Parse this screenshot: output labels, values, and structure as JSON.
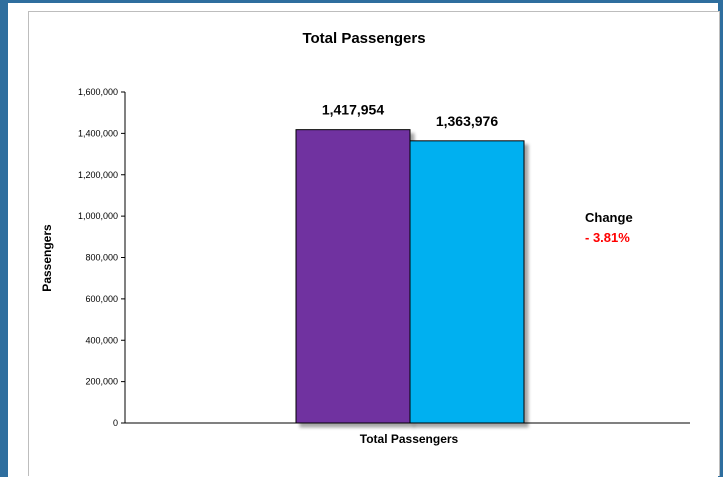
{
  "colors": {
    "series1": "#7030a0",
    "series2": "#00b0f0",
    "change": "#ff0000"
  },
  "annotation": {
    "label": "Change",
    "value": "- 3.81%"
  },
  "chart_data": {
    "type": "bar",
    "title": "Total Passengers",
    "xlabel": "Total Passengers",
    "ylabel": "Passengers",
    "categories": [
      "Total Passengers"
    ],
    "series": [
      {
        "values": [
          1417954
        ],
        "label": "1,417,954"
      },
      {
        "values": [
          1363976
        ],
        "label": "1,363,976"
      }
    ],
    "ylim": [
      0,
      1600000
    ],
    "yticks": [
      "0",
      "200,000",
      "400,000",
      "600,000",
      "800,000",
      "1,000,000",
      "1,200,000",
      "1,400,000",
      "1,600,000"
    ],
    "grid": false,
    "legend": "none"
  }
}
